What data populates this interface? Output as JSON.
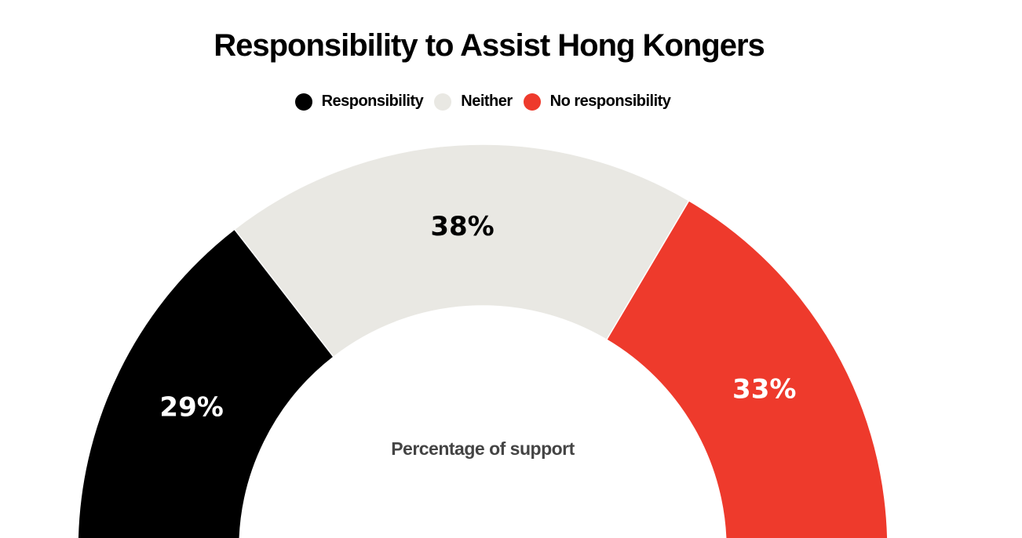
{
  "chart_data": {
    "type": "pie",
    "subtype": "semicircle-donut",
    "title": "Responsibility to Assist Hong Kongers",
    "center_label": "Percentage of support",
    "legend_position": "top",
    "series": [
      {
        "name": "Responsibility",
        "value": 29,
        "label": "29%",
        "color": "#000000",
        "label_color": "#ffffff"
      },
      {
        "name": "Neither",
        "value": 38,
        "label": "38%",
        "color": "#e9e8e3",
        "label_color": "#000000"
      },
      {
        "name": "No responsibility",
        "value": 33,
        "label": "33%",
        "color": "#ee3a2c",
        "label_color": "#ffffff"
      }
    ]
  }
}
